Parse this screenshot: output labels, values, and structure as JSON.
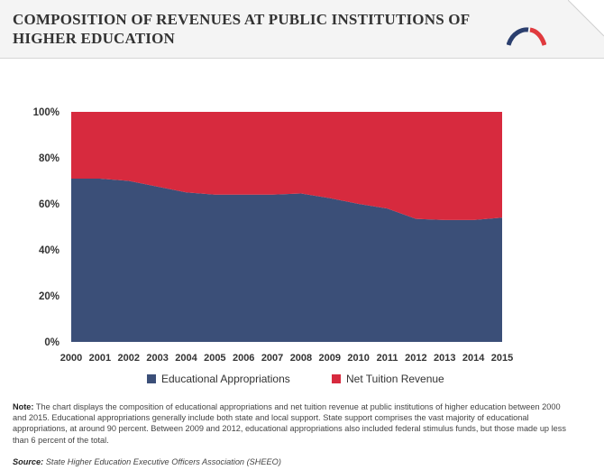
{
  "header": {
    "title": "COMPOSITION OF REVENUES AT PUBLIC INSTITUTIONS OF HIGHER EDUCATION",
    "logo_icon": "arc-logo-icon",
    "colors": {
      "logo_blue": "#2b3f6e",
      "logo_red": "#e03a3e"
    }
  },
  "chart_data": {
    "type": "area",
    "stacked": true,
    "percent": true,
    "x": [
      2000,
      2001,
      2002,
      2003,
      2004,
      2005,
      2006,
      2007,
      2008,
      2009,
      2010,
      2011,
      2012,
      2013,
      2014,
      2015
    ],
    "x_tick_labels": [
      "2000",
      "2001",
      "2002",
      "2003",
      "2004",
      "2005",
      "2006",
      "2007",
      "2008",
      "2009",
      "2010",
      "2011",
      "2012",
      "2013",
      "2014",
      "2015"
    ],
    "ylim": [
      0,
      100
    ],
    "y_ticks": [
      0,
      20,
      40,
      60,
      80,
      100
    ],
    "y_tick_labels": [
      "0%",
      "20%",
      "40%",
      "60%",
      "80%",
      "100%"
    ],
    "grid": false,
    "legend_position": "bottom",
    "series": [
      {
        "name": "Educational Appropriations",
        "color": "#3b4f78",
        "values": [
          71,
          71,
          70,
          67.5,
          65,
          64,
          64,
          64,
          64.5,
          62.5,
          60,
          58,
          53.5,
          53,
          53,
          54
        ]
      },
      {
        "name": "Net Tuition Revenue",
        "color": "#d72a3e",
        "values": [
          29,
          29,
          30,
          32.5,
          35,
          36,
          36,
          36,
          35.5,
          37.5,
          40,
          42,
          46.5,
          47,
          47,
          46
        ]
      }
    ]
  },
  "note": {
    "label": "Note:",
    "text": " The chart displays the composition of educational appropriations and net tuition revenue at public institutions of higher education between 2000 and 2015. Educational appropriations generally include both state and local support. State support comprises the vast majority of educational appropriations, at around 90 percent. Between 2009 and 2012, educational appropriations also included federal stimulus funds, but those made up less than 6 percent of the total."
  },
  "source": {
    "label": "Source:",
    "text": " State Higher Education Executive Officers Association (SHEEO)"
  }
}
